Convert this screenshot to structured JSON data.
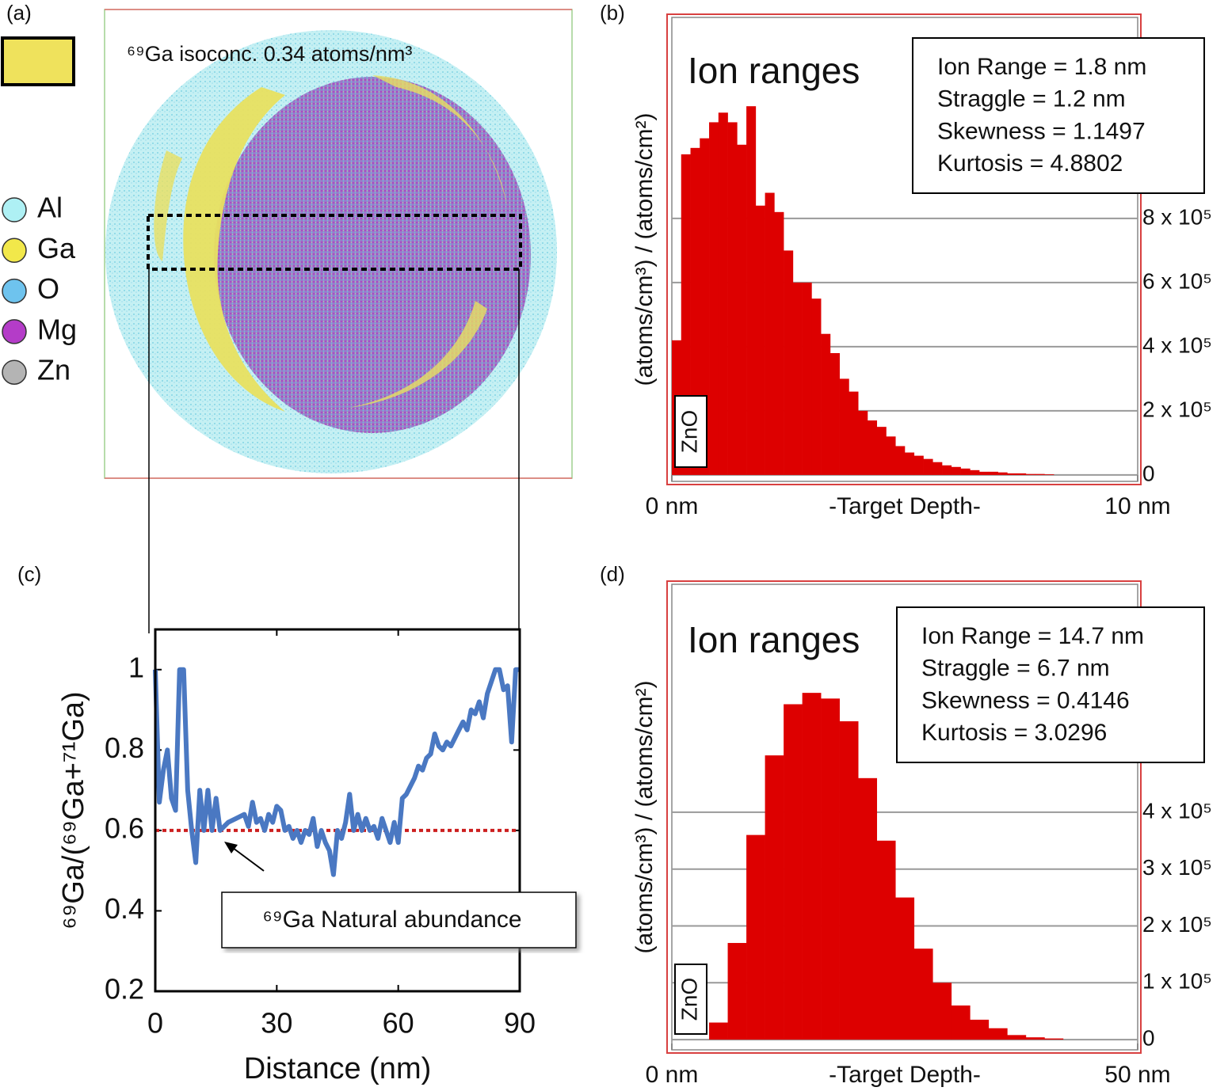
{
  "image_panel": {
    "panel_label": "(a)",
    "annotation": "⁶⁹Ga isoconc. 0.34 atoms/nm³",
    "isosurface_color": "#efe25c",
    "legend": [
      {
        "name": "Al",
        "color": "#aef0f4"
      },
      {
        "name": "Ga",
        "color": "#f2e84a"
      },
      {
        "name": "O",
        "color": "#6ec3ee"
      },
      {
        "name": "Mg",
        "color": "#b43cc8"
      },
      {
        "name": "Zn",
        "color": "#b4b4b4"
      }
    ]
  },
  "chart_data": [
    {
      "type": "line",
      "panel_label": "(c)",
      "xlabel": "Distance (nm)",
      "ylabel": "⁶⁹Ga/(⁶⁹Ga+⁷¹Ga)",
      "color": "#4a78c2",
      "x": [
        0,
        1,
        2,
        3,
        4,
        5,
        6,
        7,
        8,
        9,
        10,
        11,
        12,
        13,
        14,
        15,
        16,
        18,
        20,
        22,
        23,
        24,
        25,
        26,
        27,
        28,
        29,
        30,
        31,
        32,
        33,
        34,
        35,
        36,
        37,
        38,
        39,
        40,
        41,
        42,
        43,
        44,
        45,
        46,
        47,
        48,
        49,
        50,
        51,
        52,
        53,
        54,
        55,
        56,
        57,
        58,
        59,
        60,
        61,
        62,
        63,
        64,
        65,
        66,
        67,
        68,
        69,
        70,
        71,
        72,
        73,
        74,
        75,
        76,
        77,
        78,
        79,
        80,
        81,
        82,
        83,
        84,
        85,
        86,
        87,
        88,
        89,
        90
      ],
      "values": [
        1.0,
        0.67,
        0.75,
        0.8,
        0.68,
        0.65,
        1.0,
        1.0,
        0.7,
        0.6,
        0.52,
        0.7,
        0.6,
        0.7,
        0.6,
        0.68,
        0.6,
        0.62,
        0.63,
        0.64,
        0.61,
        0.67,
        0.62,
        0.63,
        0.6,
        0.64,
        0.62,
        0.66,
        0.65,
        0.6,
        0.61,
        0.58,
        0.6,
        0.57,
        0.6,
        0.59,
        0.63,
        0.56,
        0.6,
        0.57,
        0.55,
        0.49,
        0.6,
        0.58,
        0.62,
        0.69,
        0.6,
        0.64,
        0.6,
        0.63,
        0.6,
        0.61,
        0.58,
        0.63,
        0.6,
        0.57,
        0.62,
        0.57,
        0.68,
        0.69,
        0.71,
        0.73,
        0.76,
        0.75,
        0.78,
        0.79,
        0.84,
        0.81,
        0.8,
        0.82,
        0.81,
        0.83,
        0.85,
        0.87,
        0.85,
        0.9,
        0.89,
        0.92,
        0.88,
        0.94,
        0.97,
        1.0,
        1.0,
        0.95,
        0.96,
        0.82,
        1.0,
        1.0
      ],
      "reference_line": {
        "value": 0.6,
        "color": "#cc1f1f"
      },
      "annotation": "⁶⁹Ga Natural abundance",
      "xlim": [
        0,
        90
      ],
      "xticks": [
        0,
        30,
        60,
        90
      ],
      "ylim": [
        0.2,
        1.1
      ],
      "yticks": [
        0.2,
        0.4,
        0.6,
        0.8,
        1
      ]
    },
    {
      "type": "histogram",
      "panel_label": "(b)",
      "title": "Ion ranges",
      "stats": [
        "Ion Range = 1.8 nm",
        "Straggle = 1.2 nm",
        "Skewness = 1.1497",
        "Kurtosis = 4.8802"
      ],
      "inset_label": "ZnO",
      "xlabel": "-Target Depth-",
      "ylabel": "(atoms/cm³) / (atoms/cm²)",
      "color": "#dd0000",
      "grid": true,
      "bins": [
        0,
        0.2,
        0.4,
        0.6,
        0.8,
        1,
        1.2,
        1.4,
        1.6,
        1.8,
        2,
        2.2,
        2.4,
        2.6,
        2.8,
        3,
        3.2,
        3.4,
        3.6,
        3.8,
        4,
        4.2,
        4.4,
        4.6,
        4.8,
        5,
        5.2,
        5.4,
        5.6,
        5.8,
        6,
        6.2,
        6.4,
        6.6,
        6.8,
        7,
        7.2,
        7.4,
        7.6,
        7.8,
        8,
        8.2,
        8.4,
        8.6,
        8.8,
        9,
        9.2,
        9.4,
        9.6,
        9.8,
        10
      ],
      "values": [
        420000,
        1000000,
        1020000,
        1050000,
        1100000,
        1130000,
        1100000,
        1030000,
        1150000,
        840000,
        880000,
        820000,
        700000,
        600000,
        600000,
        550000,
        440000,
        380000,
        300000,
        260000,
        200000,
        170000,
        150000,
        120000,
        90000,
        70000,
        60000,
        50000,
        40000,
        30000,
        25000,
        20000,
        15000,
        10000,
        10000,
        8000,
        5000,
        5000,
        3000,
        3000,
        2000,
        0,
        0,
        0,
        0,
        0,
        0,
        0,
        0,
        0
      ],
      "xlim": [
        0,
        10
      ],
      "xticks": [
        {
          "value": 0,
          "label": "0 nm"
        },
        {
          "value": 10,
          "label": "10 nm"
        }
      ],
      "ylim": [
        -20000,
        1427000
      ],
      "yticks": [
        0,
        {
          "value": 200000,
          "label": "2 x 10⁵"
        },
        {
          "value": 400000,
          "label": "4 x 10⁵"
        },
        {
          "value": 600000,
          "label": "6 x 10⁵"
        },
        {
          "value": 800000,
          "label": "8 x 10⁵"
        }
      ]
    },
    {
      "type": "histogram",
      "panel_label": "(d)",
      "title": "Ion ranges",
      "stats": [
        "Ion Range = 14.7 nm",
        "Straggle = 6.7 nm",
        "Skewness = 0.4146",
        "Kurtosis = 3.0296"
      ],
      "inset_label": "ZnO",
      "xlabel": "-Target Depth-",
      "ylabel": "(atoms/cm³) / (atoms/cm²)",
      "color": "#dd0000",
      "grid": true,
      "bins": [
        0,
        2,
        4,
        6,
        8,
        10,
        12,
        14,
        16,
        18,
        20,
        22,
        24,
        26,
        28,
        30,
        32,
        34,
        36,
        38,
        40,
        42,
        44,
        46,
        48,
        50
      ],
      "values": [
        0,
        0,
        30000,
        170000,
        360000,
        500000,
        590000,
        610000,
        600000,
        560000,
        460000,
        350000,
        250000,
        160000,
        100000,
        60000,
        35000,
        20000,
        8000,
        4000,
        2000,
        0,
        0,
        0,
        0
      ],
      "xlim": [
        0,
        50
      ],
      "xticks": [
        {
          "value": 0,
          "label": "0 nm"
        },
        {
          "value": 50,
          "label": "50 nm"
        }
      ],
      "ylim": [
        -18000,
        801000
      ],
      "yticks": [
        0,
        {
          "value": 100000,
          "label": "1 x 10⁵"
        },
        {
          "value": 200000,
          "label": "2 x 10⁵"
        },
        {
          "value": 300000,
          "label": "3 x 10⁵"
        },
        {
          "value": 400000,
          "label": "4 x 10⁵"
        }
      ]
    }
  ]
}
